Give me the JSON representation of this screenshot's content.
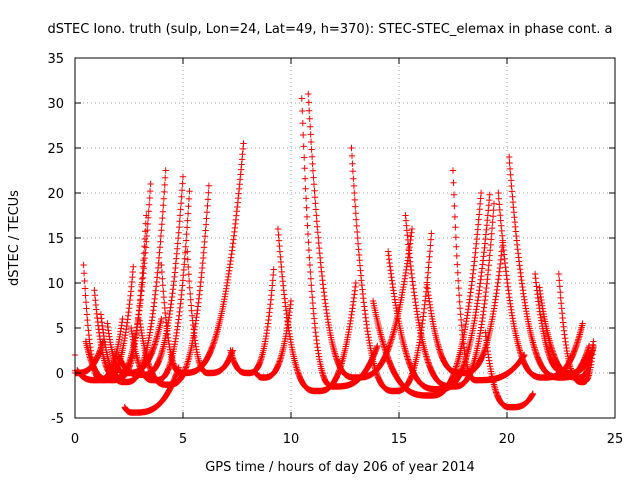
{
  "chart_data": {
    "type": "scatter",
    "title": "dSTEC Iono. truth (sulp, Lon=24, Lat=49, h=370): STEC-STEC_elemax in phase cont. a",
    "xlabel": "GPS time / hours of day 206 of year 2014",
    "ylabel": "dSTEC  / TECUs",
    "xlim": [
      0,
      25
    ],
    "ylim": [
      -5,
      35
    ],
    "x_ticks": [
      "0",
      "5",
      "10",
      "15",
      "20",
      "25"
    ],
    "y_ticks": [
      "-5",
      "0",
      "5",
      "10",
      "15",
      "20",
      "25",
      "30",
      "35"
    ],
    "grid": true,
    "marker": "+",
    "color": "#ff0000",
    "arcs": [
      {
        "start": 0.0,
        "peak": 0.0,
        "end": 1.3,
        "pre": 2.0,
        "peak_value": 0.0,
        "post": 3.5
      },
      {
        "start": 0.1,
        "peak": 1.0,
        "end": 2.2,
        "pre": 0.3,
        "peak_value": -0.8,
        "post": 6.0
      },
      {
        "start": 0.4,
        "peak": 1.3,
        "end": 2.7,
        "pre": 12.0,
        "peak_value": -0.8,
        "post": 11.8
      },
      {
        "start": 0.5,
        "peak": 1.7,
        "end": 3.5,
        "pre": 3.5,
        "peak_value": -0.8,
        "post": 21.0
      },
      {
        "start": 0.9,
        "peak": 2.0,
        "end": 3.3,
        "pre": 9.2,
        "peak_value": -0.5,
        "post": 17.5
      },
      {
        "start": 1.2,
        "peak": 2.3,
        "end": 4.2,
        "pre": 6.5,
        "peak_value": -1.0,
        "post": 22.5
      },
      {
        "start": 1.5,
        "peak": 2.4,
        "end": 4.0,
        "pre": 5.5,
        "peak_value": 0.0,
        "post": 6.0
      },
      {
        "start": 2.3,
        "peak": 2.7,
        "end": 4.8,
        "pre": -3.8,
        "peak_value": -4.4,
        "post": 0.6
      },
      {
        "start": 2.0,
        "peak": 3.1,
        "end": 5.0,
        "pre": 2.0,
        "peak_value": -0.2,
        "post": 21.8
      },
      {
        "start": 2.6,
        "peak": 3.7,
        "end": 5.3,
        "pre": 5.0,
        "peak_value": -0.8,
        "post": 20.2
      },
      {
        "start": 3.0,
        "peak": 4.3,
        "end": 6.2,
        "pre": 5.8,
        "peak_value": -1.3,
        "post": 20.8
      },
      {
        "start": 4.0,
        "peak": 5.0,
        "end": 7.8,
        "pre": 12.0,
        "peak_value": 0.0,
        "post": 25.5
      },
      {
        "start": 5.2,
        "peak": 6.2,
        "end": 7.3,
        "pre": 13.5,
        "peak_value": 0.0,
        "post": 2.5
      },
      {
        "start": 7.2,
        "peak": 8.0,
        "end": 9.2,
        "pre": 2.5,
        "peak_value": 0.0,
        "post": 11.5
      },
      {
        "start": 8.4,
        "peak": 8.7,
        "end": 10.0,
        "pre": 0.0,
        "peak_value": -0.5,
        "post": 8.0
      },
      {
        "start": 9.4,
        "peak": 11.2,
        "end": 13.0,
        "pre": 16.0,
        "peak_value": -2.0,
        "post": 10.0
      },
      {
        "start": 10.5,
        "peak": 12.0,
        "end": 14.0,
        "pre": 30.5,
        "peak_value": -1.5,
        "post": 3.0
      },
      {
        "start": 10.8,
        "peak": 13.0,
        "end": 15.6,
        "pre": 31.0,
        "peak_value": -0.5,
        "post": 16.0
      },
      {
        "start": 12.8,
        "peak": 14.8,
        "end": 16.5,
        "pre": 25.0,
        "peak_value": -2.0,
        "post": 15.5
      },
      {
        "start": 13.8,
        "peak": 16.4,
        "end": 18.8,
        "pre": 8.0,
        "peak_value": -2.5,
        "post": 20.0
      },
      {
        "start": 14.5,
        "peak": 16.8,
        "end": 19.2,
        "pre": 13.5,
        "peak_value": -1.8,
        "post": 19.8
      },
      {
        "start": 15.3,
        "peak": 17.5,
        "end": 19.4,
        "pre": 17.5,
        "peak_value": -1.5,
        "post": 18.8
      },
      {
        "start": 16.3,
        "peak": 17.9,
        "end": 19.8,
        "pre": 9.8,
        "peak_value": 0.0,
        "post": 14.5
      },
      {
        "start": 17.5,
        "peak": 18.6,
        "end": 20.8,
        "pre": 22.5,
        "peak_value": -0.8,
        "post": 2.0
      },
      {
        "start": 19.0,
        "peak": 20.2,
        "end": 21.2,
        "pre": 4.5,
        "peak_value": -3.8,
        "post": -2.3
      },
      {
        "start": 19.6,
        "peak": 21.7,
        "end": 23.5,
        "pre": 20.0,
        "peak_value": -0.5,
        "post": 5.5
      },
      {
        "start": 20.1,
        "peak": 22.5,
        "end": 23.8,
        "pre": 24.0,
        "peak_value": -0.5,
        "post": 3.0
      },
      {
        "start": 21.3,
        "peak": 22.8,
        "end": 24.0,
        "pre": 11.0,
        "peak_value": 0.0,
        "post": 2.8
      },
      {
        "start": 21.5,
        "peak": 23.3,
        "end": 24.0,
        "pre": 9.5,
        "peak_value": -0.5,
        "post": 3.5
      },
      {
        "start": 22.4,
        "peak": 23.5,
        "end": 24.0,
        "pre": 11.0,
        "peak_value": -1.0,
        "post": 3.0
      }
    ]
  }
}
